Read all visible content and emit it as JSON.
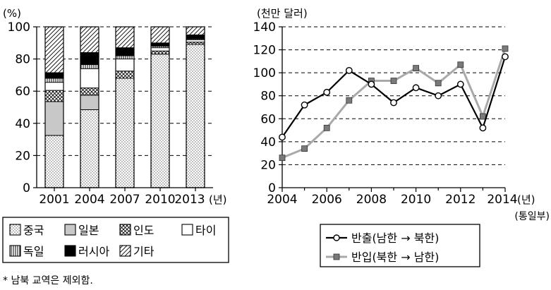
{
  "chart_data": [
    {
      "type": "bar",
      "stacked": true,
      "ylabel": "(%)",
      "ylim": [
        0,
        100
      ],
      "yticks": [
        "0",
        "20",
        "40",
        "60",
        "80",
        "100"
      ],
      "categories": [
        "2001",
        "2004",
        "2007",
        "2010",
        "2013"
      ],
      "x_unit_label": "(년)",
      "grid": true,
      "series": [
        {
          "name": "중국",
          "pattern": "dots",
          "values": [
            32.5,
            48.5,
            68,
            83,
            89
          ]
        },
        {
          "name": "일본",
          "pattern": "gray",
          "values": [
            21,
            9,
            0,
            0,
            0
          ]
        },
        {
          "name": "인도",
          "pattern": "crosshatch",
          "values": [
            7,
            4.5,
            4.5,
            2,
            1.5
          ]
        },
        {
          "name": "타이",
          "pattern": "white",
          "values": [
            5,
            12,
            7.5,
            2,
            1.5
          ]
        },
        {
          "name": "독일",
          "pattern": "vertical-lines",
          "values": [
            2.5,
            2.5,
            2,
            1,
            0.5
          ]
        },
        {
          "name": "러시아",
          "pattern": "black",
          "values": [
            3.5,
            7.5,
            5,
            2,
            2.5
          ]
        },
        {
          "name": "기타",
          "pattern": "diagonal",
          "values": [
            28.5,
            16,
            13,
            10,
            5
          ]
        }
      ]
    },
    {
      "type": "line",
      "ylabel": "(천만 달러)",
      "ylim": [
        0,
        140
      ],
      "yticks": [
        "0",
        "20",
        "40",
        "60",
        "80",
        "100",
        "120",
        "140"
      ],
      "xlim": [
        2004,
        2014
      ],
      "xticks": [
        "2004",
        "2006",
        "2008",
        "2010",
        "2012",
        "2014"
      ],
      "x_unit_label": "(년)",
      "x_unit_label2": "(통일부)",
      "grid": true,
      "x": [
        2004,
        2005,
        2006,
        2007,
        2008,
        2009,
        2010,
        2011,
        2012,
        2013,
        2014
      ],
      "series": [
        {
          "name": "반출(남한 → 북한)",
          "color": "#000000",
          "marker": "open-circle",
          "values": [
            44,
            72,
            83,
            102,
            90,
            74,
            87,
            80,
            90,
            52,
            114
          ]
        },
        {
          "name": "반입(북한 → 남한)",
          "color": "#a9a9a9",
          "marker": "gray-square",
          "values": [
            26,
            34,
            52,
            76,
            93,
            93,
            104,
            91,
            107,
            62,
            121
          ]
        }
      ]
    }
  ],
  "footnote": "* 남북 교역은 제외함."
}
